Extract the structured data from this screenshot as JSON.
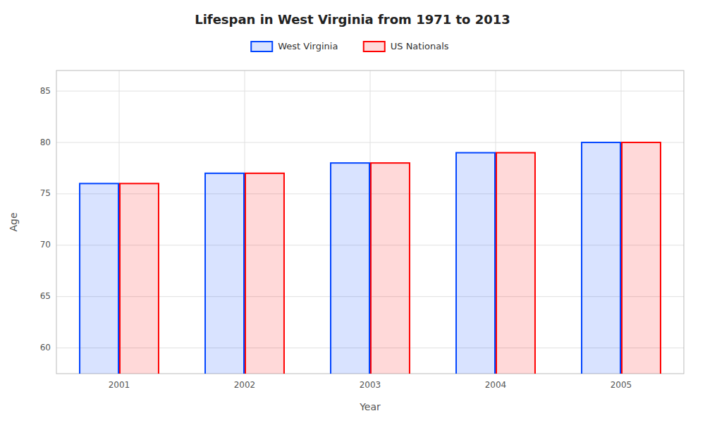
{
  "chart_data": {
    "type": "bar",
    "title": "Lifespan in West Virginia from 1971 to 2013",
    "xlabel": "Year",
    "ylabel": "Age",
    "categories": [
      "2001",
      "2002",
      "2003",
      "2004",
      "2005"
    ],
    "series": [
      {
        "name": "West Virginia",
        "color": "#0044ff",
        "values": [
          76,
          77,
          78,
          79,
          80
        ]
      },
      {
        "name": "US Nationals",
        "color": "#ff0000",
        "values": [
          76,
          77,
          78,
          79,
          80
        ]
      }
    ],
    "ylim": [
      57.5,
      87
    ],
    "yticks": [
      60,
      65,
      70,
      75,
      80,
      85
    ],
    "grid": true,
    "legend": "top"
  }
}
